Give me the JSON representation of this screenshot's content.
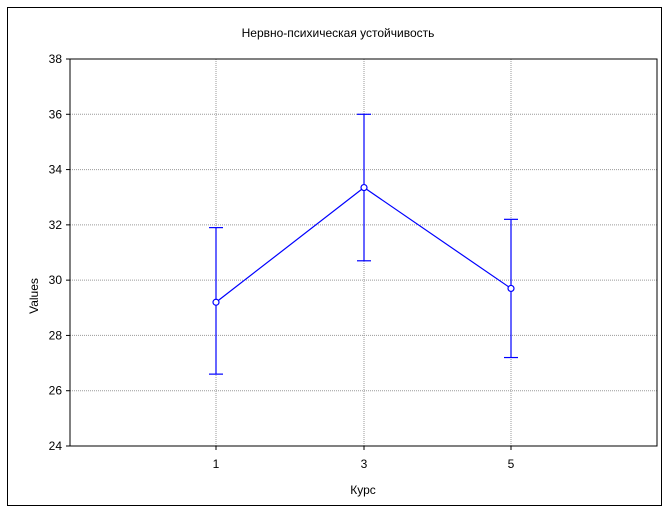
{
  "chart_data": {
    "type": "line",
    "title": "Нервно-психическая устойчивость",
    "xlabel": "Курс",
    "ylabel": "Values",
    "categories": [
      "1",
      "3",
      "5"
    ],
    "ylim": [
      24,
      38
    ],
    "yticks": [
      24,
      26,
      28,
      30,
      32,
      34,
      36,
      38
    ],
    "grid": true,
    "series": [
      {
        "values": [
          29.2,
          33.35,
          29.7
        ],
        "lower": [
          26.6,
          30.7,
          27.2
        ],
        "upper": [
          31.9,
          36.0,
          32.2
        ],
        "color": "#0000ff"
      }
    ]
  }
}
